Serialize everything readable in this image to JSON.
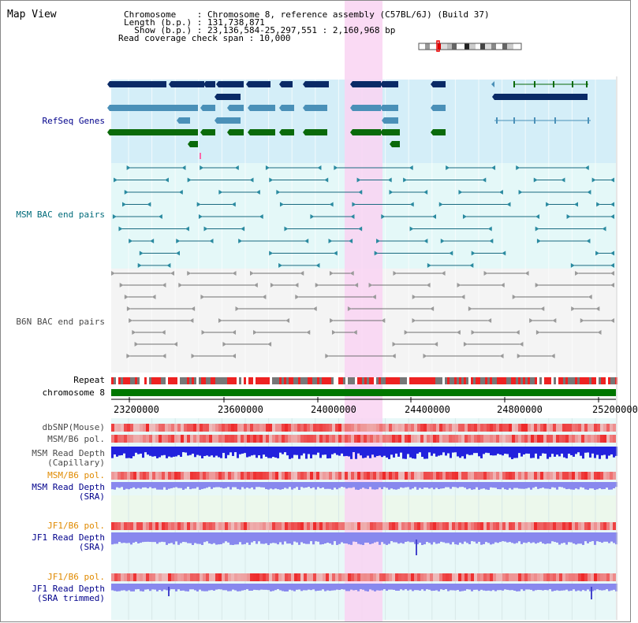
{
  "title": "Map View",
  "info": {
    "line1": "Chromosome    : Chromosome 8, reference assembly (C57BL/6J) (Build 37)",
    "line2": "Length (b.p.) : 131,738,871",
    "line3": "  Show (b.p.) : 23,136,584-25,297,551 : 2,160,968 bp",
    "line4": "Read coverage check span : 10,000"
  },
  "tracks": {
    "refseq": "RefSeq Genes",
    "msm_bac": "MSM BAC end pairs",
    "b6n_bac": "B6N BAC end pairs",
    "repeat": "Repeat",
    "chromosome": "chromosome 8",
    "dbsnp": "dbSNP(Mouse)",
    "msm_b6_pol_1": "MSM/B6 pol.",
    "msm_read_depth_cap_1": "MSM Read Depth",
    "msm_read_depth_cap_2": "(Capillary)",
    "msm_b6_pol_2": "MSM/B6 pol.",
    "msm_read_depth_sra_1": "MSM Read Depth",
    "msm_read_depth_sra_2": "(SRA)",
    "jf1_b6_pol_1": "JF1/B6 pol.",
    "jf1_read_depth_sra_1": "JF1 Read Depth",
    "jf1_read_depth_sra_2": "(SRA)",
    "jf1_b6_pol_2": "JF1/B6 pol.",
    "jf1_read_depth_trim_1": "JF1 Read Depth",
    "jf1_read_depth_trim_2": "(SRA trimmed)"
  },
  "axis": {
    "ticks": [
      "23200000",
      "23600000",
      "24000000",
      "24400000",
      "24800000",
      "25200000"
    ]
  },
  "colors": {
    "refseq_bg": "#d4eef8",
    "msm_bg": "#e4f8f8",
    "b6n_bg": "#f4f4f4",
    "highlight": "#f9d4f2",
    "navy": "#0a2a66",
    "steel": "#4a90b8",
    "green": "#0a6a0a",
    "chrom_green": "#007700",
    "depth_blue": "#2222dd",
    "depth_light": "#8888ee",
    "snp_red": "#ee4444"
  }
}
